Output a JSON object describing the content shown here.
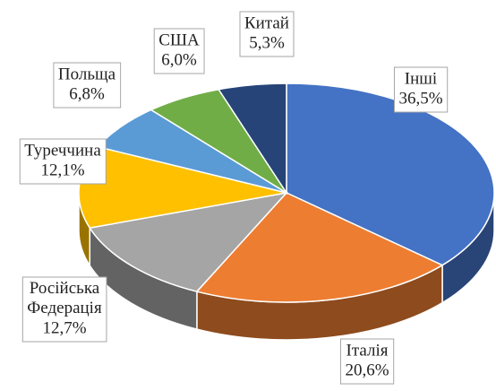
{
  "chart_data": {
    "type": "pie",
    "categories": [
      "Інші",
      "Італія",
      "Російська Федерація",
      "Туреччина",
      "Польща",
      "США",
      "Китай"
    ],
    "values": [
      36.5,
      20.6,
      12.7,
      12.1,
      6.8,
      6.0,
      5.3
    ],
    "value_labels": [
      "36,5%",
      "20,6%",
      "12,7%",
      "12,1%",
      "6,8%",
      "6,0%",
      "5,3%"
    ],
    "colors": [
      "#4472c4",
      "#ed7d31",
      "#a5a5a5",
      "#ffc000",
      "#5b9bd5",
      "#70ad47",
      "#264478"
    ]
  }
}
